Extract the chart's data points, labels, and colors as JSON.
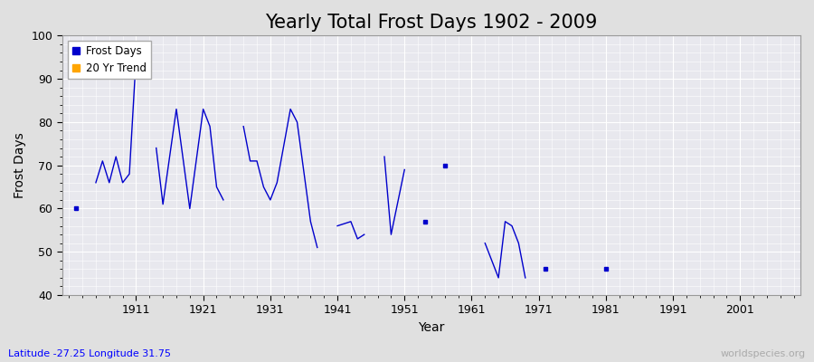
{
  "title": "Yearly Total Frost Days 1902 - 2009",
  "xlabel": "Year",
  "ylabel": "Frost Days",
  "subtitle": "Latitude -27.25 Longitude 31.75",
  "watermark": "worldspecies.org",
  "years": [
    1902,
    1905,
    1906,
    1907,
    1908,
    1909,
    1910,
    1911,
    1914,
    1915,
    1917,
    1919,
    1921,
    1922,
    1923,
    1924,
    1927,
    1928,
    1929,
    1930,
    1931,
    1932,
    1934,
    1935,
    1937,
    1938,
    1941,
    1943,
    1944,
    1945,
    1948,
    1949,
    1951,
    1954,
    1957,
    1963,
    1965,
    1966,
    1967,
    1968,
    1969,
    1972,
    1981
  ],
  "frost_days": [
    60,
    66,
    71,
    66,
    72,
    66,
    68,
    95,
    74,
    61,
    83,
    60,
    83,
    79,
    65,
    62,
    79,
    71,
    71,
    65,
    62,
    66,
    83,
    80,
    57,
    51,
    56,
    57,
    53,
    54,
    72,
    54,
    69,
    57,
    70,
    52,
    44,
    57,
    56,
    52,
    44,
    46,
    46
  ],
  "line_color": "#0000cc",
  "marker_color": "#0000cc",
  "trend_color": "#ffa500",
  "bg_color": "#e0e0e0",
  "plot_bg_color": "#e8e8ee",
  "grid_color": "#ffffff",
  "ylim": [
    40,
    100
  ],
  "xlim": [
    1900,
    2010
  ],
  "yticks": [
    40,
    50,
    60,
    70,
    80,
    90,
    100
  ],
  "xticks": [
    1911,
    1921,
    1931,
    1941,
    1951,
    1961,
    1971,
    1981,
    1991,
    2001
  ],
  "legend_frost": "Frost Days",
  "legend_trend": "20 Yr Trend",
  "title_fontsize": 15,
  "axis_fontsize": 10,
  "tick_fontsize": 9
}
